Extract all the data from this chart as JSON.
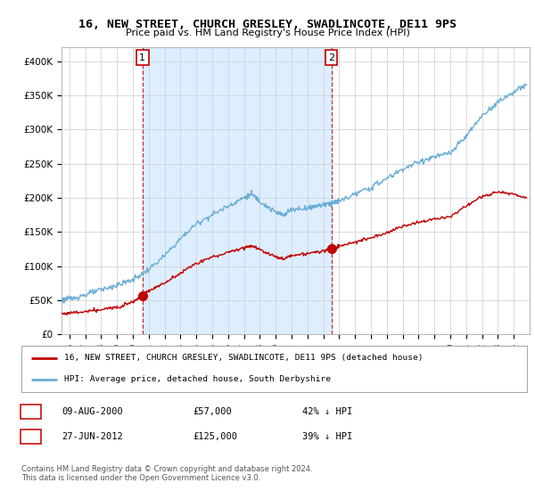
{
  "title": "16, NEW STREET, CHURCH GRESLEY, SWADLINCOTE, DE11 9PS",
  "subtitle": "Price paid vs. HM Land Registry's House Price Index (HPI)",
  "ylabel_ticks": [
    "£0",
    "£50K",
    "£100K",
    "£150K",
    "£200K",
    "£250K",
    "£300K",
    "£350K",
    "£400K"
  ],
  "ylim": [
    0,
    420000
  ],
  "xlim_start": 1995.5,
  "xlim_end": 2025.0,
  "hpi_color": "#6aaed6",
  "property_color": "#c00000",
  "shade_color": "#ddeeff",
  "marker1_x": 2000.6,
  "marker1_y": 57000,
  "marker2_x": 2012.5,
  "marker2_y": 125000,
  "sale1_label": "1",
  "sale2_label": "2",
  "legend_property": "16, NEW STREET, CHURCH GRESLEY, SWADLINCOTE, DE11 9PS (detached house)",
  "legend_hpi": "HPI: Average price, detached house, South Derbyshire",
  "table_row1": [
    "1",
    "09-AUG-2000",
    "£57,000",
    "42% ↓ HPI"
  ],
  "table_row2": [
    "2",
    "27-JUN-2012",
    "£125,000",
    "39% ↓ HPI"
  ],
  "footer": "Contains HM Land Registry data © Crown copyright and database right 2024.\nThis data is licensed under the Open Government Licence v3.0.",
  "background_color": "#ffffff",
  "grid_color": "#cccccc"
}
